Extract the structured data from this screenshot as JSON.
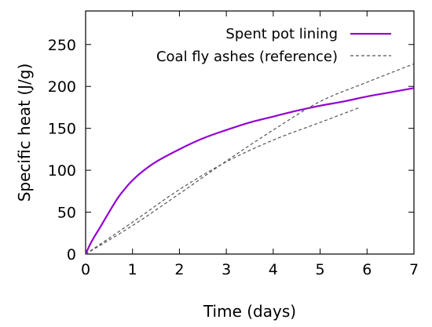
{
  "chart_data": {
    "type": "line",
    "xlabel": "Time (days)",
    "ylabel": "Specific heat (J/g)",
    "xlim": [
      0,
      7
    ],
    "ylim": [
      0,
      290
    ],
    "x_ticks": [
      0,
      1,
      2,
      3,
      4,
      5,
      6,
      7
    ],
    "y_ticks": [
      0,
      50,
      100,
      150,
      200,
      250
    ],
    "grid": false,
    "legend_position": "top-right",
    "series": [
      {
        "name": "Spent pot lining",
        "style": "solid",
        "color": "#9400d3",
        "x": [
          0,
          0.1,
          0.2,
          0.3,
          0.5,
          0.7,
          0.9,
          1.0,
          1.2,
          1.5,
          2.0,
          2.5,
          3.0,
          3.5,
          4.0,
          4.5,
          5.0,
          5.5,
          6.0,
          6.5,
          7.0
        ],
        "y": [
          0,
          12,
          22,
          31,
          50,
          68,
          82,
          88,
          98,
          110,
          125,
          138,
          148,
          157,
          164,
          171,
          177,
          182,
          188,
          193,
          198
        ]
      },
      {
        "name": "Coal fly ashes (reference)",
        "style": "dashed",
        "color": "#555555",
        "x": [
          0,
          1,
          2,
          3,
          4,
          5,
          6,
          7
        ],
        "y": [
          0,
          34,
          72,
          111,
          148,
          182,
          205,
          227
        ]
      },
      {
        "name": "",
        "style": "dashed",
        "color": "#555555",
        "x": [
          0,
          1,
          2,
          3,
          4,
          5,
          5.85
        ],
        "y": [
          0,
          38,
          77,
          110,
          136,
          157,
          175
        ]
      }
    ]
  }
}
